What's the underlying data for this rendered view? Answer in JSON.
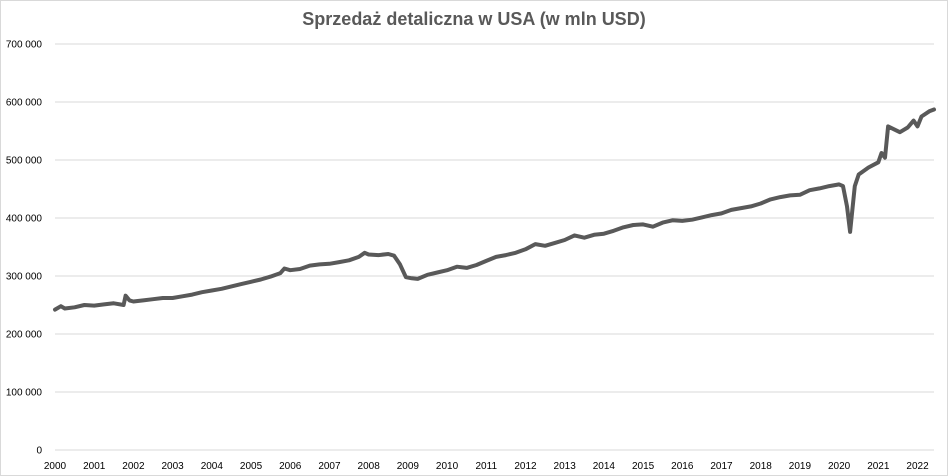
{
  "chart_data": {
    "type": "line",
    "title": "Sprzedaż detaliczna w USA (w mln USD)",
    "xlabel": "",
    "ylabel": "",
    "ylim": [
      0,
      700000
    ],
    "yticks": [
      0,
      100000,
      200000,
      300000,
      400000,
      500000,
      600000,
      700000
    ],
    "ytick_labels": [
      "0",
      "100 000",
      "200 000",
      "300 000",
      "400 000",
      "500 000",
      "600 000",
      "700 000"
    ],
    "xlim": [
      2000,
      2022.42
    ],
    "xtick_labels": [
      "2000",
      "2001",
      "2002",
      "2003",
      "2004",
      "2005",
      "2006",
      "2007",
      "2008",
      "2009",
      "2010",
      "2011",
      "2012",
      "2013",
      "2014",
      "2015",
      "2016",
      "2017",
      "2018",
      "2019",
      "2020",
      "2021",
      "2022"
    ],
    "grid": true,
    "line_color": "#595959",
    "series": [
      {
        "points": [
          [
            2000.0,
            242000
          ],
          [
            2000.15,
            248000
          ],
          [
            2000.25,
            244000
          ],
          [
            2000.5,
            246000
          ],
          [
            2000.75,
            250000
          ],
          [
            2001.0,
            249000
          ],
          [
            2001.25,
            251000
          ],
          [
            2001.5,
            253000
          ],
          [
            2001.75,
            250000
          ],
          [
            2001.8,
            266000
          ],
          [
            2001.9,
            258000
          ],
          [
            2002.0,
            256000
          ],
          [
            2002.25,
            258000
          ],
          [
            2002.5,
            260000
          ],
          [
            2002.75,
            262000
          ],
          [
            2003.0,
            262000
          ],
          [
            2003.25,
            265000
          ],
          [
            2003.5,
            268000
          ],
          [
            2003.75,
            272000
          ],
          [
            2004.0,
            275000
          ],
          [
            2004.25,
            278000
          ],
          [
            2004.5,
            282000
          ],
          [
            2004.75,
            286000
          ],
          [
            2005.0,
            290000
          ],
          [
            2005.25,
            294000
          ],
          [
            2005.5,
            299000
          ],
          [
            2005.75,
            305000
          ],
          [
            2005.85,
            313000
          ],
          [
            2006.0,
            310000
          ],
          [
            2006.25,
            312000
          ],
          [
            2006.5,
            318000
          ],
          [
            2006.75,
            320000
          ],
          [
            2007.0,
            321000
          ],
          [
            2007.25,
            324000
          ],
          [
            2007.5,
            327000
          ],
          [
            2007.75,
            333000
          ],
          [
            2007.9,
            340000
          ],
          [
            2008.0,
            337000
          ],
          [
            2008.25,
            336000
          ],
          [
            2008.5,
            338000
          ],
          [
            2008.65,
            335000
          ],
          [
            2008.8,
            320000
          ],
          [
            2008.95,
            298000
          ],
          [
            2009.1,
            296000
          ],
          [
            2009.25,
            295000
          ],
          [
            2009.5,
            302000
          ],
          [
            2009.75,
            306000
          ],
          [
            2010.0,
            310000
          ],
          [
            2010.25,
            316000
          ],
          [
            2010.5,
            314000
          ],
          [
            2010.75,
            319000
          ],
          [
            2011.0,
            326000
          ],
          [
            2011.25,
            333000
          ],
          [
            2011.5,
            336000
          ],
          [
            2011.75,
            340000
          ],
          [
            2012.0,
            346000
          ],
          [
            2012.25,
            355000
          ],
          [
            2012.5,
            352000
          ],
          [
            2012.75,
            357000
          ],
          [
            2013.0,
            362000
          ],
          [
            2013.25,
            370000
          ],
          [
            2013.5,
            366000
          ],
          [
            2013.75,
            371000
          ],
          [
            2014.0,
            373000
          ],
          [
            2014.25,
            378000
          ],
          [
            2014.5,
            384000
          ],
          [
            2014.75,
            388000
          ],
          [
            2015.0,
            389000
          ],
          [
            2015.25,
            385000
          ],
          [
            2015.5,
            392000
          ],
          [
            2015.75,
            396000
          ],
          [
            2016.0,
            395000
          ],
          [
            2016.25,
            397000
          ],
          [
            2016.5,
            401000
          ],
          [
            2016.75,
            405000
          ],
          [
            2017.0,
            408000
          ],
          [
            2017.25,
            414000
          ],
          [
            2017.5,
            417000
          ],
          [
            2017.75,
            420000
          ],
          [
            2018.0,
            425000
          ],
          [
            2018.25,
            432000
          ],
          [
            2018.5,
            436000
          ],
          [
            2018.75,
            439000
          ],
          [
            2019.0,
            440000
          ],
          [
            2019.25,
            448000
          ],
          [
            2019.5,
            451000
          ],
          [
            2019.75,
            455000
          ],
          [
            2020.0,
            458000
          ],
          [
            2020.1,
            455000
          ],
          [
            2020.2,
            420000
          ],
          [
            2020.28,
            376000
          ],
          [
            2020.4,
            455000
          ],
          [
            2020.5,
            475000
          ],
          [
            2020.75,
            487000
          ],
          [
            2021.0,
            496000
          ],
          [
            2021.08,
            512000
          ],
          [
            2021.17,
            504000
          ],
          [
            2021.25,
            558000
          ],
          [
            2021.4,
            553000
          ],
          [
            2021.55,
            548000
          ],
          [
            2021.75,
            556000
          ],
          [
            2021.9,
            568000
          ],
          [
            2022.0,
            558000
          ],
          [
            2022.1,
            575000
          ],
          [
            2022.3,
            584000
          ],
          [
            2022.42,
            587000
          ]
        ]
      }
    ]
  }
}
